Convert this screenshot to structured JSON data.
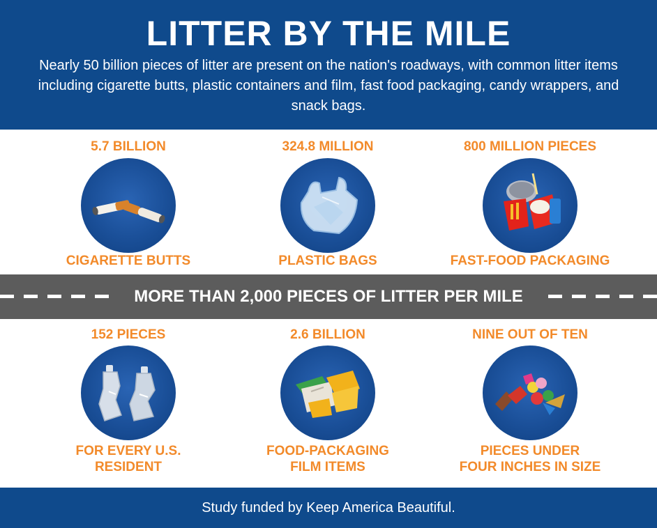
{
  "header": {
    "title": "LITTER BY THE MILE",
    "subtitle": "Nearly 50 billion pieces of litter are present on the nation's roadways, with common litter items including cigarette butts, plastic containers and film, fast food packaging, candy wrappers, and snack bags."
  },
  "top_row": [
    {
      "stat": "5.7 BILLION",
      "label": "CIGARETTE BUTTS",
      "icon": "cigarette-butts-icon"
    },
    {
      "stat": "324.8 MILLION",
      "label": "PLASTIC BAGS",
      "icon": "plastic-bag-icon"
    },
    {
      "stat": "800 MILLION PIECES",
      "label": "FAST-FOOD PACKAGING",
      "icon": "fast-food-packaging-icon"
    }
  ],
  "road": {
    "label": "MORE THAN 2,000 PIECES OF LITTER PER MILE"
  },
  "bottom_row": [
    {
      "stat": "152 PIECES",
      "label_line1": "FOR EVERY U.S.",
      "label_line2": "RESIDENT",
      "icon": "plastic-bottles-icon"
    },
    {
      "stat": "2.6 BILLION",
      "label_line1": "FOOD-PACKAGING",
      "label_line2": "FILM ITEMS",
      "icon": "food-film-icon"
    },
    {
      "stat": "NINE OUT OF TEN",
      "label_line1": "PIECES UNDER",
      "label_line2": "FOUR INCHES IN SIZE",
      "icon": "candy-wrappers-icon"
    }
  ],
  "footer": {
    "text": "Study funded by Keep America Beautiful."
  },
  "colors": {
    "header_blue": "#0f4a8c",
    "accent_orange": "#f28a2a",
    "road_gray": "#5c5c5c",
    "circle_blue": "#1a4f98"
  }
}
